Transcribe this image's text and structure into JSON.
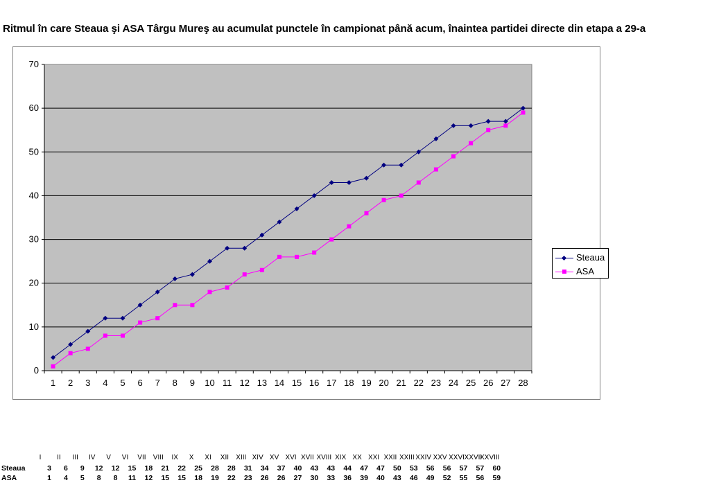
{
  "title": "Ritmul în care Steaua şi ASA Târgu Mureş au acumulat punctele în campionat până acum, înaintea partidei directe din etapa a 29-a",
  "chart_data": {
    "type": "line",
    "x": [
      1,
      2,
      3,
      4,
      5,
      6,
      7,
      8,
      9,
      10,
      11,
      12,
      13,
      14,
      15,
      16,
      17,
      18,
      19,
      20,
      21,
      22,
      23,
      24,
      25,
      26,
      27,
      28
    ],
    "ylim": [
      0,
      70
    ],
    "yticks": [
      0,
      10,
      20,
      30,
      40,
      50,
      60,
      70
    ],
    "grid": true,
    "legend_position": "right",
    "series": [
      {
        "name": "Steaua",
        "color": "#000080",
        "marker": "diamond",
        "values": [
          3,
          6,
          9,
          12,
          12,
          15,
          18,
          21,
          22,
          25,
          28,
          28,
          31,
          34,
          37,
          40,
          43,
          43,
          44,
          47,
          47,
          50,
          53,
          56,
          56,
          57,
          57,
          60
        ]
      },
      {
        "name": "ASA",
        "color": "#ff00ff",
        "marker": "square",
        "values": [
          1,
          4,
          5,
          8,
          8,
          11,
          12,
          15,
          15,
          18,
          19,
          22,
          23,
          26,
          26,
          27,
          30,
          33,
          36,
          39,
          40,
          43,
          46,
          49,
          52,
          55,
          56,
          59
        ]
      }
    ]
  },
  "table": {
    "rounds": [
      "I",
      "II",
      "III",
      "IV",
      "V",
      "VI",
      "VII",
      "VIII",
      "IX",
      "X",
      "XI",
      "XII",
      "XIII",
      "XIV",
      "XV",
      "XVI",
      "XVII",
      "XVIII",
      "XIX",
      "XX",
      "XXI",
      "XXII",
      "XXIII",
      "XXIV",
      "XXV",
      "XXVI",
      "XXVII",
      "XXVIII"
    ],
    "rows": [
      {
        "label": "Steaua",
        "values": [
          "3",
          "6",
          "9",
          "12",
          "12",
          "15",
          "18",
          "21",
          "22",
          "25",
          "28",
          "28",
          "31",
          "34",
          "37",
          "40",
          "43",
          "43",
          "44",
          "47",
          "47",
          "50",
          "53",
          "56",
          "56",
          "57",
          "57",
          "60"
        ]
      },
      {
        "label": "ASA",
        "values": [
          "1",
          "4",
          "5",
          "8",
          "8",
          "11",
          "12",
          "15",
          "15",
          "18",
          "19",
          "22",
          "23",
          "26",
          "26",
          "27",
          "30",
          "33",
          "36",
          "39",
          "40",
          "43",
          "46",
          "49",
          "52",
          "55",
          "56",
          "59"
        ]
      }
    ]
  }
}
